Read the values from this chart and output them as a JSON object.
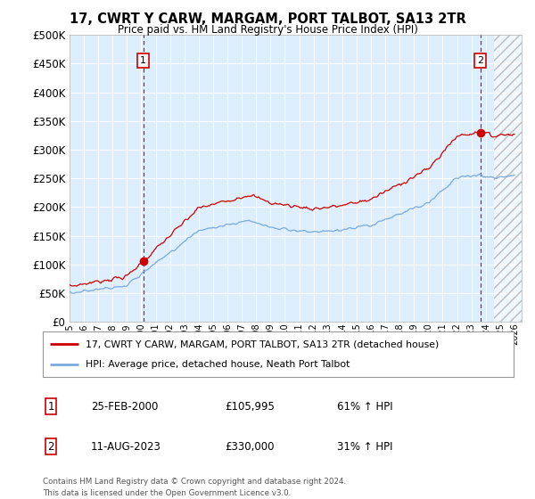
{
  "title": "17, CWRT Y CARW, MARGAM, PORT TALBOT, SA13 2TR",
  "subtitle": "Price paid vs. HM Land Registry's House Price Index (HPI)",
  "legend_line1": "17, CWRT Y CARW, MARGAM, PORT TALBOT, SA13 2TR (detached house)",
  "legend_line2": "HPI: Average price, detached house, Neath Port Talbot",
  "marker1_date": "25-FEB-2000",
  "marker1_price": "£105,995",
  "marker1_hpi": "61% ↑ HPI",
  "marker1_year": 2000.14,
  "marker1_value": 105995,
  "marker2_date": "11-AUG-2023",
  "marker2_price": "£330,000",
  "marker2_hpi": "31% ↑ HPI",
  "marker2_year": 2023.62,
  "marker2_value": 330000,
  "ytick_values": [
    0,
    50000,
    100000,
    150000,
    200000,
    250000,
    300000,
    350000,
    400000,
    450000,
    500000
  ],
  "xmin": 1995.0,
  "xmax": 2026.5,
  "ymin": 0,
  "ymax": 500000,
  "line_color_red": "#cc0000",
  "line_color_blue": "#7aaadd",
  "bg_color": "#ddeeff",
  "grid_color": "#ffffff",
  "hatch_start": 2024.58,
  "footnote_line1": "Contains HM Land Registry data © Crown copyright and database right 2024.",
  "footnote_line2": "This data is licensed under the Open Government Licence v3.0."
}
